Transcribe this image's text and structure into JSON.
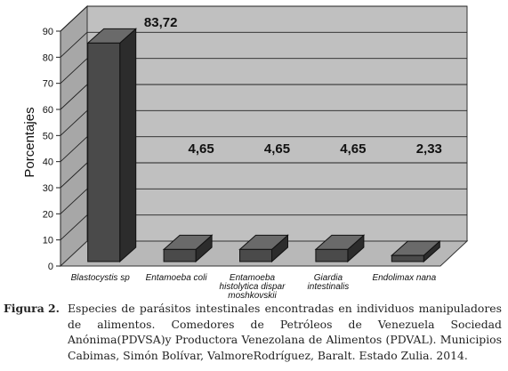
{
  "chart_data": {
    "type": "bar",
    "style": "3d",
    "ylabel": "Porcentajes",
    "xlabel": "",
    "ylim": [
      0,
      90
    ],
    "yticks": [
      0,
      10,
      20,
      30,
      40,
      50,
      60,
      70,
      80,
      90
    ],
    "grid": true,
    "categories": [
      [
        "Blastocystis sp"
      ],
      [
        "Entamoeba coli"
      ],
      [
        "Entamoeba",
        "histolytica dispar",
        "moshkovskii"
      ],
      [
        "Giardia",
        "intestinalis"
      ],
      [
        "Endolimax nana"
      ]
    ],
    "values": [
      83.72,
      4.65,
      4.65,
      4.65,
      2.33
    ],
    "value_labels": [
      "83,72",
      "4,65",
      "4,65",
      "4,65",
      "2,33"
    ],
    "colors": {
      "wall_back": "#c0c0c0",
      "wall_side": "#a7a7a7",
      "floor": "#b8b8b8",
      "bar_front": "#4a4a4a",
      "bar_top": "#6a6a6a",
      "bar_side": "#2c2c2c"
    }
  },
  "caption": {
    "label": "Figura 2.",
    "text": "Especies de parásitos intestinales encontradas en individuos manipuladores de alimentos. Comedores de Petróleos de Venezuela Sociedad Anónima(PDVSA)y Productora Venezolana de Alimentos (PDVAL). Municipios Cabimas, Simón Bolívar, ValmoreRodríguez, Baralt. Estado Zulia. 2014."
  }
}
